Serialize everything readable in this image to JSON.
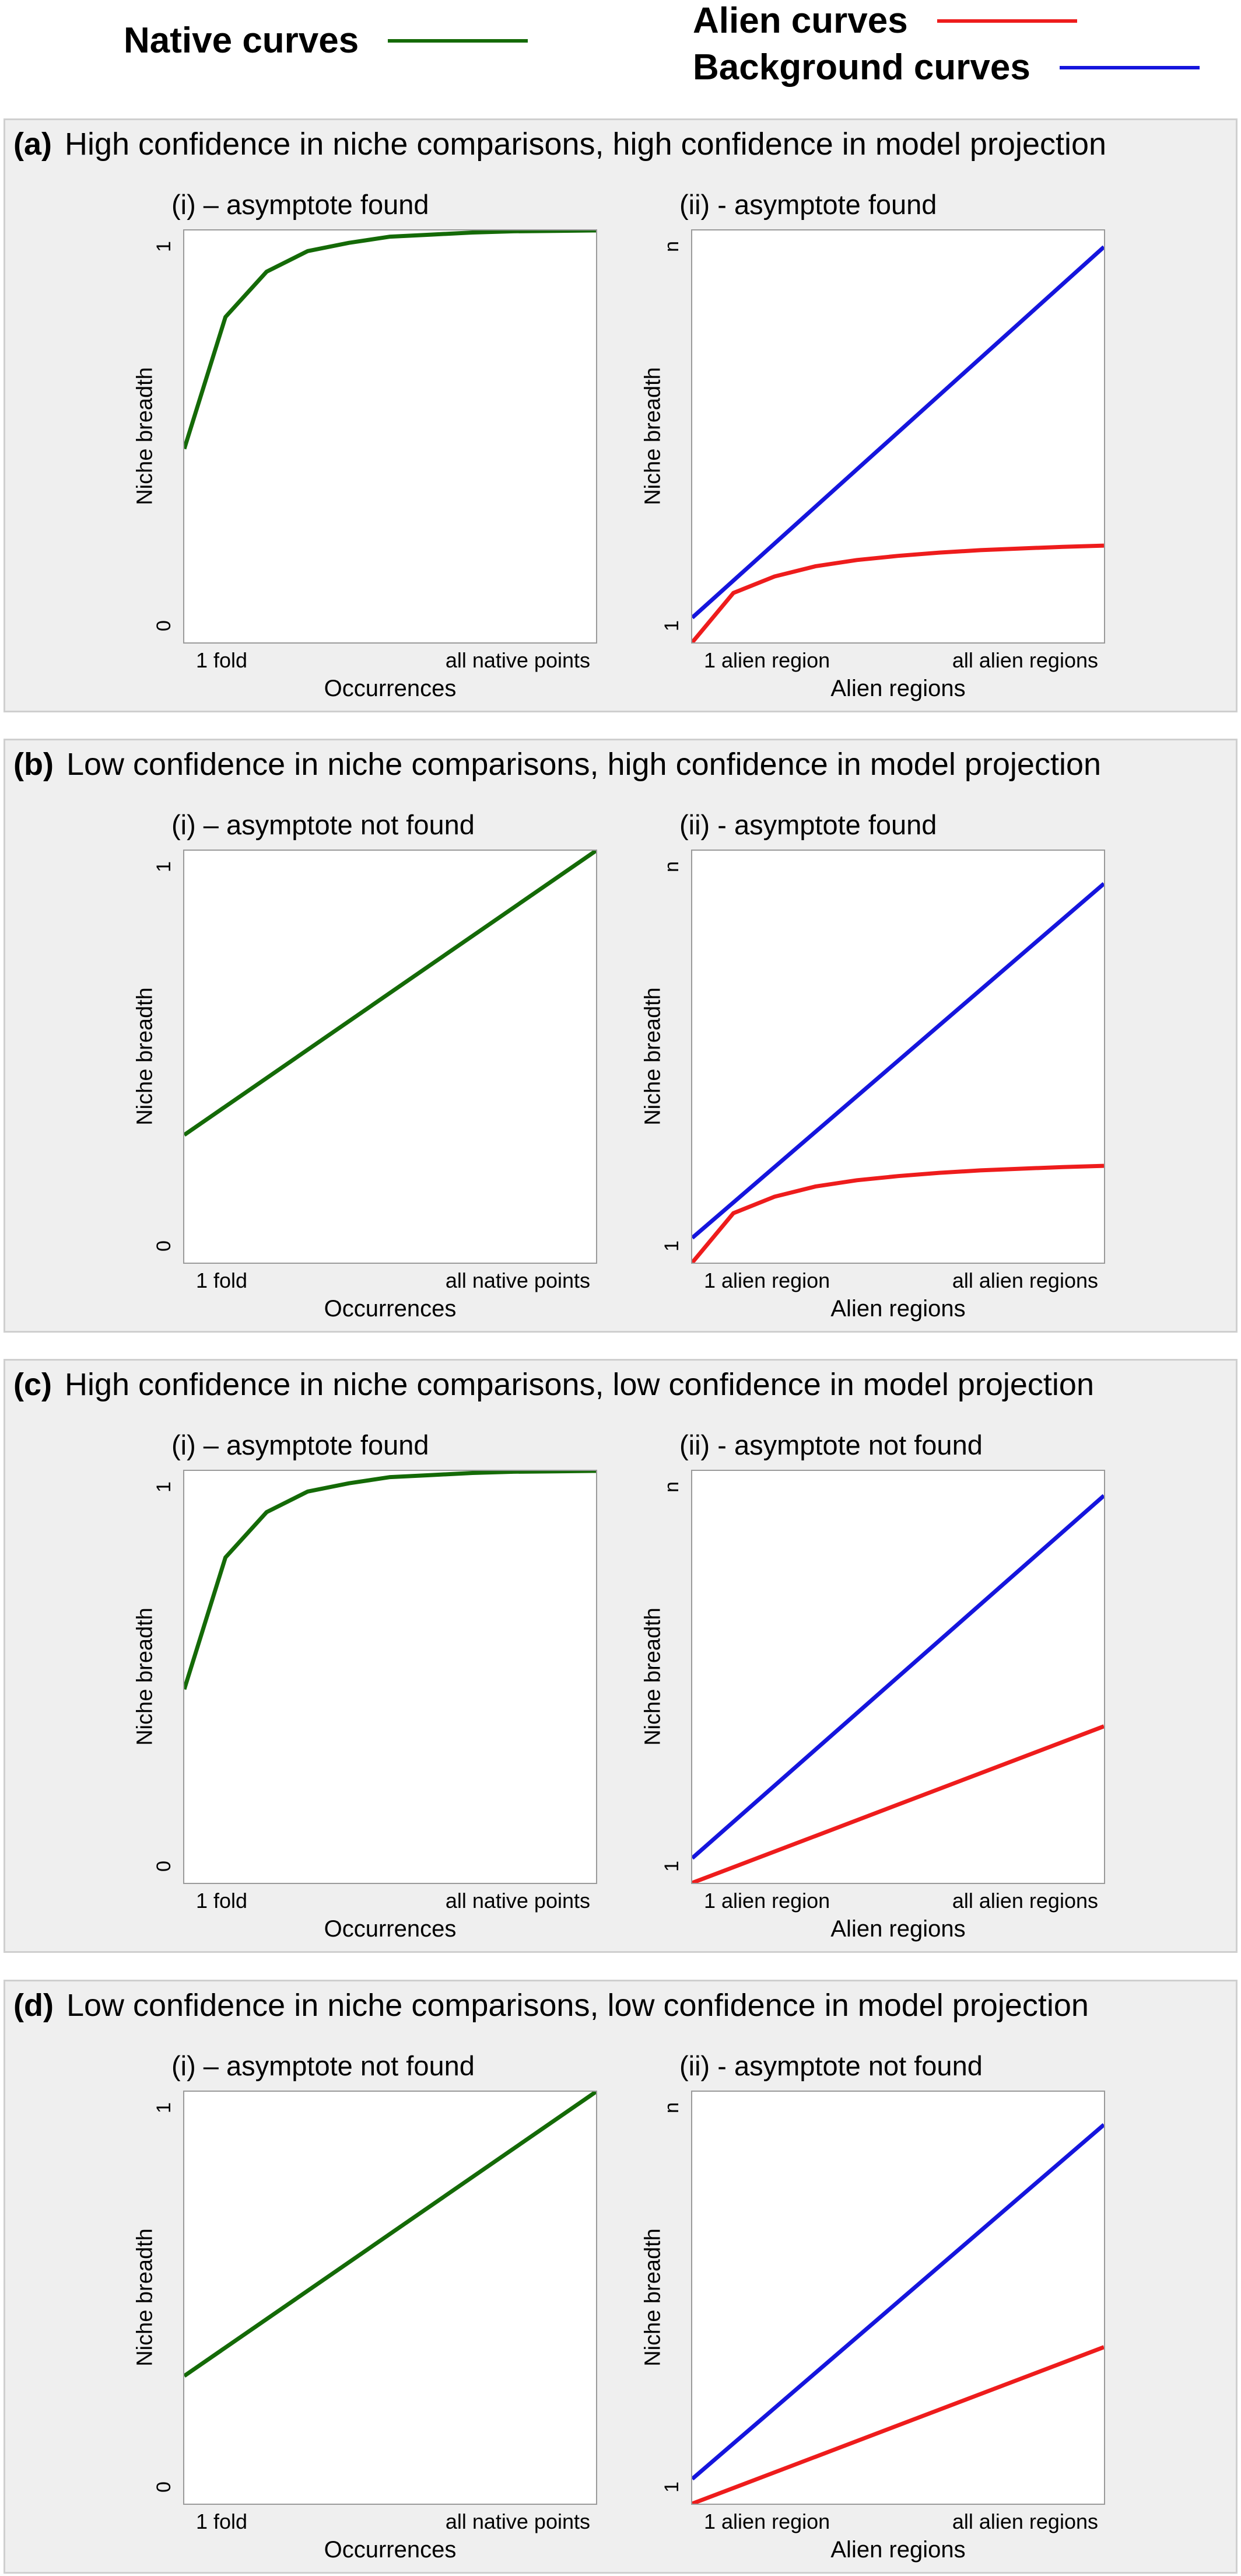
{
  "legend": {
    "native": {
      "label": "Native curves",
      "color": "#146a07"
    },
    "alien": {
      "label": "Alien curves",
      "color": "#ee1c1c"
    },
    "background": {
      "label": "Background curves",
      "color": "#1515dd"
    }
  },
  "panels": [
    {
      "tag": "(a)",
      "title": "High confidence in niche comparisons, high confidence in model projection",
      "left": {
        "subtitle": "(i) – asymptote found",
        "ylabel": "Niche breadth",
        "ytick_top": "1",
        "ytick_bottom": "0",
        "xtick_left": "1 fold",
        "xtick_right": "all native points",
        "xlabel": "Occurrences"
      },
      "right": {
        "subtitle": "(ii) -  asymptote found",
        "ylabel": "Niche breadth",
        "ytick_top": "n",
        "ytick_bottom": "1",
        "xtick_left": "1 alien region",
        "xtick_right": "all alien regions",
        "xlabel": "Alien regions"
      }
    },
    {
      "tag": "(b)",
      "title": "Low confidence in niche comparisons, high confidence in model projection",
      "left": {
        "subtitle": "(i) – asymptote not found",
        "ylabel": "Niche breadth",
        "ytick_top": "1",
        "ytick_bottom": "0",
        "xtick_left": "1 fold",
        "xtick_right": "all native points",
        "xlabel": "Occurrences"
      },
      "right": {
        "subtitle": "(ii) -  asymptote found",
        "ylabel": "Niche breadth",
        "ytick_top": "n",
        "ytick_bottom": "1",
        "xtick_left": "1 alien region",
        "xtick_right": "all alien regions",
        "xlabel": "Alien regions"
      }
    },
    {
      "tag": "(c)",
      "title": "High confidence in niche comparisons, low confidence in model projection",
      "left": {
        "subtitle": "(i) – asymptote found",
        "ylabel": "Niche breadth",
        "ytick_top": "1",
        "ytick_bottom": "0",
        "xtick_left": "1 fold",
        "xtick_right": "all native points",
        "xlabel": "Occurrences"
      },
      "right": {
        "subtitle": "(ii) -  asymptote not found",
        "ylabel": "Niche breadth",
        "ytick_top": "n",
        "ytick_bottom": "1",
        "xtick_left": "1 alien region",
        "xtick_right": "all alien regions",
        "xlabel": "Alien regions"
      }
    },
    {
      "tag": "(d)",
      "title": "Low confidence in niche comparisons, low confidence in model projection",
      "left": {
        "subtitle": "(i) – asymptote not found",
        "ylabel": "Niche breadth",
        "ytick_top": "1",
        "ytick_bottom": "0",
        "xtick_left": "1 fold",
        "xtick_right": "all native points",
        "xlabel": "Occurrences"
      },
      "right": {
        "subtitle": "(ii) -  asymptote not found",
        "ylabel": "Niche breadth",
        "ytick_top": "n",
        "ytick_bottom": "1",
        "xtick_left": "1 alien region",
        "xtick_right": "all alien regions",
        "xlabel": "Alien regions"
      }
    }
  ],
  "chart_data": [
    {
      "type": "line",
      "panel": "(a)(i)",
      "ylim": [
        0,
        1
      ],
      "series": [
        {
          "name": "Native curves",
          "x": [
            0,
            0.1,
            0.2,
            0.3,
            0.4,
            0.5,
            0.6,
            0.7,
            0.8,
            0.9,
            1.0
          ],
          "values": [
            0.47,
            0.79,
            0.9,
            0.95,
            0.97,
            0.985,
            0.99,
            0.995,
            0.998,
            0.999,
            1.0
          ]
        }
      ]
    },
    {
      "type": "line",
      "panel": "(a)(ii)",
      "ylim": [
        0,
        1
      ],
      "series": [
        {
          "name": "Background curves",
          "x": [
            0,
            1
          ],
          "values": [
            0.06,
            0.96
          ]
        },
        {
          "name": "Alien curves",
          "x": [
            0,
            0.1,
            0.2,
            0.3,
            0.4,
            0.5,
            0.6,
            0.7,
            0.8,
            0.9,
            1.0
          ],
          "values": [
            0.0,
            0.12,
            0.16,
            0.185,
            0.2,
            0.21,
            0.218,
            0.224,
            0.228,
            0.232,
            0.235
          ]
        }
      ]
    },
    {
      "type": "line",
      "panel": "(b)(i)",
      "ylim": [
        0,
        1
      ],
      "series": [
        {
          "name": "Native curves",
          "x": [
            0,
            1
          ],
          "values": [
            0.31,
            1.0
          ]
        }
      ]
    },
    {
      "type": "line",
      "panel": "(b)(ii)",
      "ylim": [
        0,
        1
      ],
      "series": [
        {
          "name": "Background curves",
          "x": [
            0,
            1
          ],
          "values": [
            0.06,
            0.92
          ]
        },
        {
          "name": "Alien curves",
          "x": [
            0,
            0.1,
            0.2,
            0.3,
            0.4,
            0.5,
            0.6,
            0.7,
            0.8,
            0.9,
            1.0
          ],
          "values": [
            0.0,
            0.12,
            0.16,
            0.185,
            0.2,
            0.21,
            0.218,
            0.224,
            0.228,
            0.232,
            0.235
          ]
        }
      ]
    },
    {
      "type": "line",
      "panel": "(c)(i)",
      "ylim": [
        0,
        1
      ],
      "series": [
        {
          "name": "Native curves",
          "x": [
            0,
            0.1,
            0.2,
            0.3,
            0.4,
            0.5,
            0.6,
            0.7,
            0.8,
            0.9,
            1.0
          ],
          "values": [
            0.47,
            0.79,
            0.9,
            0.95,
            0.97,
            0.985,
            0.99,
            0.995,
            0.998,
            0.999,
            1.0
          ]
        }
      ]
    },
    {
      "type": "line",
      "panel": "(c)(ii)",
      "ylim": [
        0,
        1
      ],
      "series": [
        {
          "name": "Background curves",
          "x": [
            0,
            1
          ],
          "values": [
            0.06,
            0.94
          ]
        },
        {
          "name": "Alien curves",
          "x": [
            0,
            1
          ],
          "values": [
            0.0,
            0.38
          ]
        }
      ]
    },
    {
      "type": "line",
      "panel": "(d)(i)",
      "ylim": [
        0,
        1
      ],
      "series": [
        {
          "name": "Native curves",
          "x": [
            0,
            1
          ],
          "values": [
            0.31,
            1.0
          ]
        }
      ]
    },
    {
      "type": "line",
      "panel": "(d)(ii)",
      "ylim": [
        0,
        1
      ],
      "series": [
        {
          "name": "Background curves",
          "x": [
            0,
            1
          ],
          "values": [
            0.06,
            0.92
          ]
        },
        {
          "name": "Alien curves",
          "x": [
            0,
            1
          ],
          "values": [
            0.0,
            0.38
          ]
        }
      ]
    }
  ]
}
